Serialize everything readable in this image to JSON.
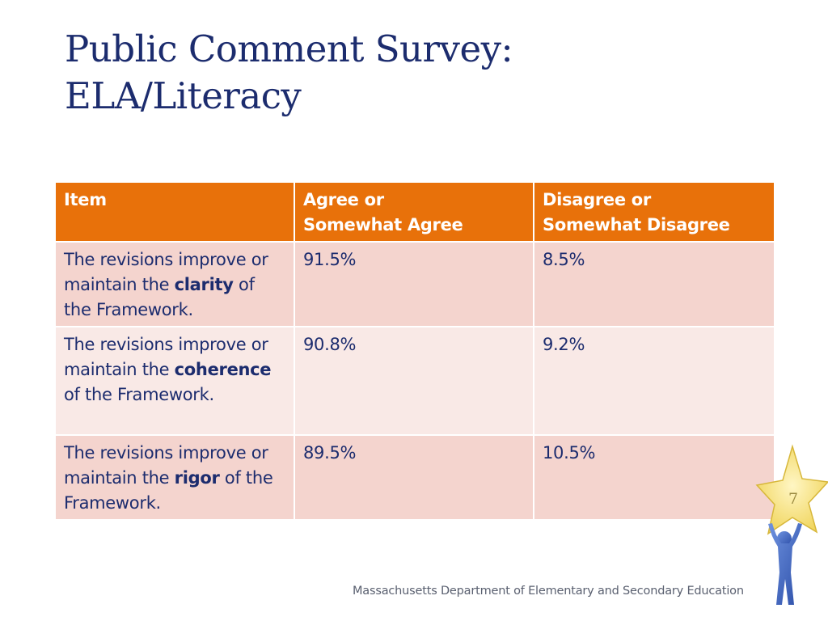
{
  "title": {
    "line1": "Public Comment Survey:",
    "line2": "ELA/Literacy"
  },
  "table": {
    "headers": {
      "item": "Item",
      "agree_line1": "Agree or",
      "agree_line2": "Somewhat Agree",
      "disagree_line1": "Disagree or",
      "disagree_line2": "Somewhat Disagree"
    },
    "rows": [
      {
        "item_prefix": "The revisions improve or maintain the ",
        "item_bold": "clarity",
        "item_suffix": " of the Framework.",
        "agree": "91.5%",
        "disagree": "8.5%"
      },
      {
        "item_prefix": "The revisions improve or maintain the ",
        "item_bold": "coherence",
        "item_suffix": " of the Framework.",
        "agree": "90.8%",
        "disagree": "9.2%"
      },
      {
        "item_prefix": "The revisions improve or maintain the ",
        "item_bold": "rigor",
        "item_suffix": " of the Framework.",
        "agree": "89.5%",
        "disagree": "10.5%"
      }
    ]
  },
  "footer": {
    "organization": "Massachusetts Department of Elementary and Secondary Education"
  },
  "page_number": "7",
  "colors": {
    "title": "#1c2c6e",
    "header_background": "#e8710a",
    "row_odd": "#f4d4ce",
    "row_even": "#f9e9e6",
    "star": "#f7e27a",
    "figure": "#3b5fb8"
  },
  "icons": {
    "mascot": "star-holding-figure-icon"
  }
}
